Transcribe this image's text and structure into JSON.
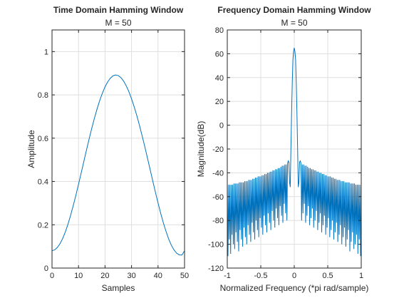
{
  "colors": {
    "line": "#0072BD",
    "axes": "#262626",
    "grid": "#DFDFDF",
    "background": "#FFFFFF"
  },
  "chart_data": [
    {
      "type": "line",
      "title": "Time Domain Hamming Window",
      "subtitle": "M = 50",
      "xlabel": "Samples",
      "ylabel": "Amplitude",
      "xlim": [
        0,
        50
      ],
      "ylim": [
        0,
        1.1
      ],
      "xticks": [
        0,
        10,
        20,
        30,
        40,
        50
      ],
      "xtick_labels": [
        "0",
        "10",
        "20",
        "30",
        "40",
        "50"
      ],
      "yticks": [
        0,
        0.2,
        0.4,
        0.6,
        0.8,
        1.0
      ],
      "ytick_labels": [
        "0",
        "0.2",
        "0.4",
        "0.6",
        "0.8",
        "1"
      ],
      "grid": true,
      "series": [
        {
          "x": [
            0,
            1,
            2,
            3,
            4,
            5,
            6,
            7,
            8,
            9,
            10,
            11,
            12,
            13,
            14,
            15,
            16,
            17,
            18,
            19,
            20,
            21,
            22,
            23,
            24,
            25,
            26,
            27,
            28,
            29,
            30,
            31,
            32,
            33,
            34,
            35,
            36,
            37,
            38,
            39,
            40,
            41,
            42,
            43,
            44,
            45,
            46,
            47,
            48,
            49,
            50
          ],
          "y": [
            0.08,
            0.084,
            0.095,
            0.112,
            0.136,
            0.166,
            0.202,
            0.243,
            0.288,
            0.336,
            0.387,
            0.439,
            0.492,
            0.545,
            0.596,
            0.646,
            0.692,
            0.735,
            0.774,
            0.808,
            0.837,
            0.86,
            0.877,
            0.888,
            0.892,
            0.889,
            0.88,
            0.864,
            0.842,
            0.815,
            0.782,
            0.745,
            0.704,
            0.659,
            0.611,
            0.561,
            0.509,
            0.456,
            0.403,
            0.351,
            0.301,
            0.253,
            0.209,
            0.17,
            0.135,
            0.106,
            0.084,
            0.069,
            0.061,
            0.06,
            0.08
          ]
        }
      ]
    },
    {
      "type": "line",
      "title": "Frequency Domain Hamming Window",
      "subtitle": "M = 50",
      "xlabel": "Normalized Frequency (*pi rad/sample)",
      "ylabel": "Magnitude(dB)",
      "xlim": [
        -1,
        1
      ],
      "ylim": [
        -120,
        80
      ],
      "xticks": [
        -1,
        -0.5,
        0,
        0.5,
        1
      ],
      "xtick_labels": [
        "-1",
        "-0.5",
        "0",
        "0.5",
        "1"
      ],
      "yticks": [
        -120,
        -100,
        -80,
        -60,
        -40,
        -20,
        0,
        20,
        40,
        60,
        80
      ],
      "ytick_labels": [
        "-120",
        "-100",
        "-80",
        "-60",
        "-40",
        "-20",
        "0",
        "20",
        "40",
        "60",
        "80"
      ],
      "grid": true,
      "series": [
        {
          "x": [
            -1,
            -0.99,
            -0.98,
            -0.97,
            -0.96,
            -0.95,
            -0.94,
            -0.93,
            -0.92,
            -0.91,
            -0.9,
            -0.89,
            -0.88,
            -0.87,
            -0.86,
            -0.85,
            -0.84,
            -0.83,
            -0.82,
            -0.81,
            -0.8,
            -0.79,
            -0.78,
            -0.77,
            -0.76,
            -0.75,
            -0.74,
            -0.73,
            -0.72,
            -0.71,
            -0.7,
            -0.69,
            -0.68,
            -0.67,
            -0.66,
            -0.65,
            -0.64,
            -0.63,
            -0.62,
            -0.61,
            -0.6,
            -0.59,
            -0.58,
            -0.57,
            -0.56,
            -0.55,
            -0.54,
            -0.53,
            -0.52,
            -0.51,
            -0.5,
            -0.49,
            -0.48,
            -0.47,
            -0.46,
            -0.45,
            -0.44,
            -0.43,
            -0.42,
            -0.41,
            -0.4,
            -0.39,
            -0.38,
            -0.37,
            -0.36,
            -0.35,
            -0.34,
            -0.33,
            -0.32,
            -0.31,
            -0.3,
            -0.29,
            -0.28,
            -0.27,
            -0.26,
            -0.25,
            -0.24,
            -0.23,
            -0.22,
            -0.21,
            -0.2,
            -0.19,
            -0.18,
            -0.17,
            -0.16,
            -0.15,
            -0.14,
            -0.13,
            -0.12,
            -0.11,
            -0.1,
            -0.09,
            -0.08,
            -0.07,
            -0.06,
            -0.05,
            -0.04,
            -0.03,
            -0.02,
            -0.01,
            0,
            0.01,
            0.02,
            0.03,
            0.04,
            0.05,
            0.06,
            0.07,
            0.08,
            0.09,
            0.1,
            0.11,
            0.12,
            0.13,
            0.14,
            0.15,
            0.16,
            0.17,
            0.18,
            0.19,
            0.2,
            0.21,
            0.22,
            0.23,
            0.24,
            0.25,
            0.26,
            0.27,
            0.28,
            0.29,
            0.3,
            0.31,
            0.32,
            0.33,
            0.34,
            0.35,
            0.36,
            0.37,
            0.38,
            0.39,
            0.4,
            0.41,
            0.42,
            0.43,
            0.44,
            0.45,
            0.46,
            0.47,
            0.48,
            0.49,
            0.5,
            0.51,
            0.52,
            0.53,
            0.54,
            0.55,
            0.56,
            0.57,
            0.58,
            0.59,
            0.6,
            0.61,
            0.62,
            0.63,
            0.64,
            0.65,
            0.66,
            0.67,
            0.68,
            0.69,
            0.7,
            0.71,
            0.72,
            0.73,
            0.74,
            0.75,
            0.76,
            0.77,
            0.78,
            0.79,
            0.8,
            0.81,
            0.82,
            0.83,
            0.84,
            0.85,
            0.86,
            0.87,
            0.88,
            0.89,
            0.9,
            0.91,
            0.92,
            0.93,
            0.94,
            0.95,
            0.96,
            0.97,
            0.98,
            0.99,
            1
          ],
          "y": [
            -50,
            -110,
            -50,
            -96,
            -50,
            -108,
            -50,
            -92,
            -50,
            -100,
            -49,
            -104,
            -49,
            -90,
            -49,
            -98,
            -49,
            -106,
            -48,
            -88,
            -48,
            -96,
            -48,
            -102,
            -48,
            -86,
            -47,
            -94,
            -47,
            -100,
            -47,
            -84,
            -46,
            -92,
            -46,
            -98,
            -46,
            -82,
            -45,
            -90,
            -45,
            -96,
            -44,
            -80,
            -44,
            -88,
            -43,
            -94,
            -43,
            -78,
            -43,
            -86,
            -42,
            -92,
            -42,
            -76,
            -41,
            -84,
            -41,
            -90,
            -40,
            -74,
            -40,
            -82,
            -39,
            -88,
            -39,
            -72,
            -38,
            -80,
            -38,
            -86,
            -37,
            -70,
            -37,
            -78,
            -36,
            -84,
            -36,
            -68,
            -35,
            -76,
            -34,
            -82,
            -34,
            -66,
            -33,
            -74,
            -33,
            -80,
            -32,
            -30,
            -31,
            -48,
            -52,
            -20,
            10,
            35,
            55,
            62,
            65,
            62,
            55,
            35,
            10,
            -20,
            -52,
            -48,
            -31,
            -30,
            -32,
            -80,
            -33,
            -74,
            -33,
            -66,
            -34,
            -82,
            -34,
            -76,
            -35,
            -68,
            -36,
            -84,
            -36,
            -78,
            -37,
            -70,
            -37,
            -86,
            -38,
            -80,
            -38,
            -72,
            -39,
            -88,
            -39,
            -82,
            -40,
            -74,
            -40,
            -90,
            -41,
            -84,
            -41,
            -76,
            -42,
            -92,
            -42,
            -86,
            -43,
            -78,
            -43,
            -94,
            -43,
            -88,
            -44,
            -80,
            -44,
            -96,
            -45,
            -90,
            -45,
            -82,
            -46,
            -98,
            -46,
            -92,
            -46,
            -84,
            -47,
            -100,
            -47,
            -94,
            -47,
            -86,
            -48,
            -102,
            -48,
            -96,
            -48,
            -88,
            -48,
            -106,
            -49,
            -98,
            -49,
            -90,
            -49,
            -104,
            -49,
            -100,
            -50,
            -92,
            -50,
            -108,
            -50,
            -96,
            -50,
            -110,
            -50
          ]
        }
      ]
    }
  ]
}
